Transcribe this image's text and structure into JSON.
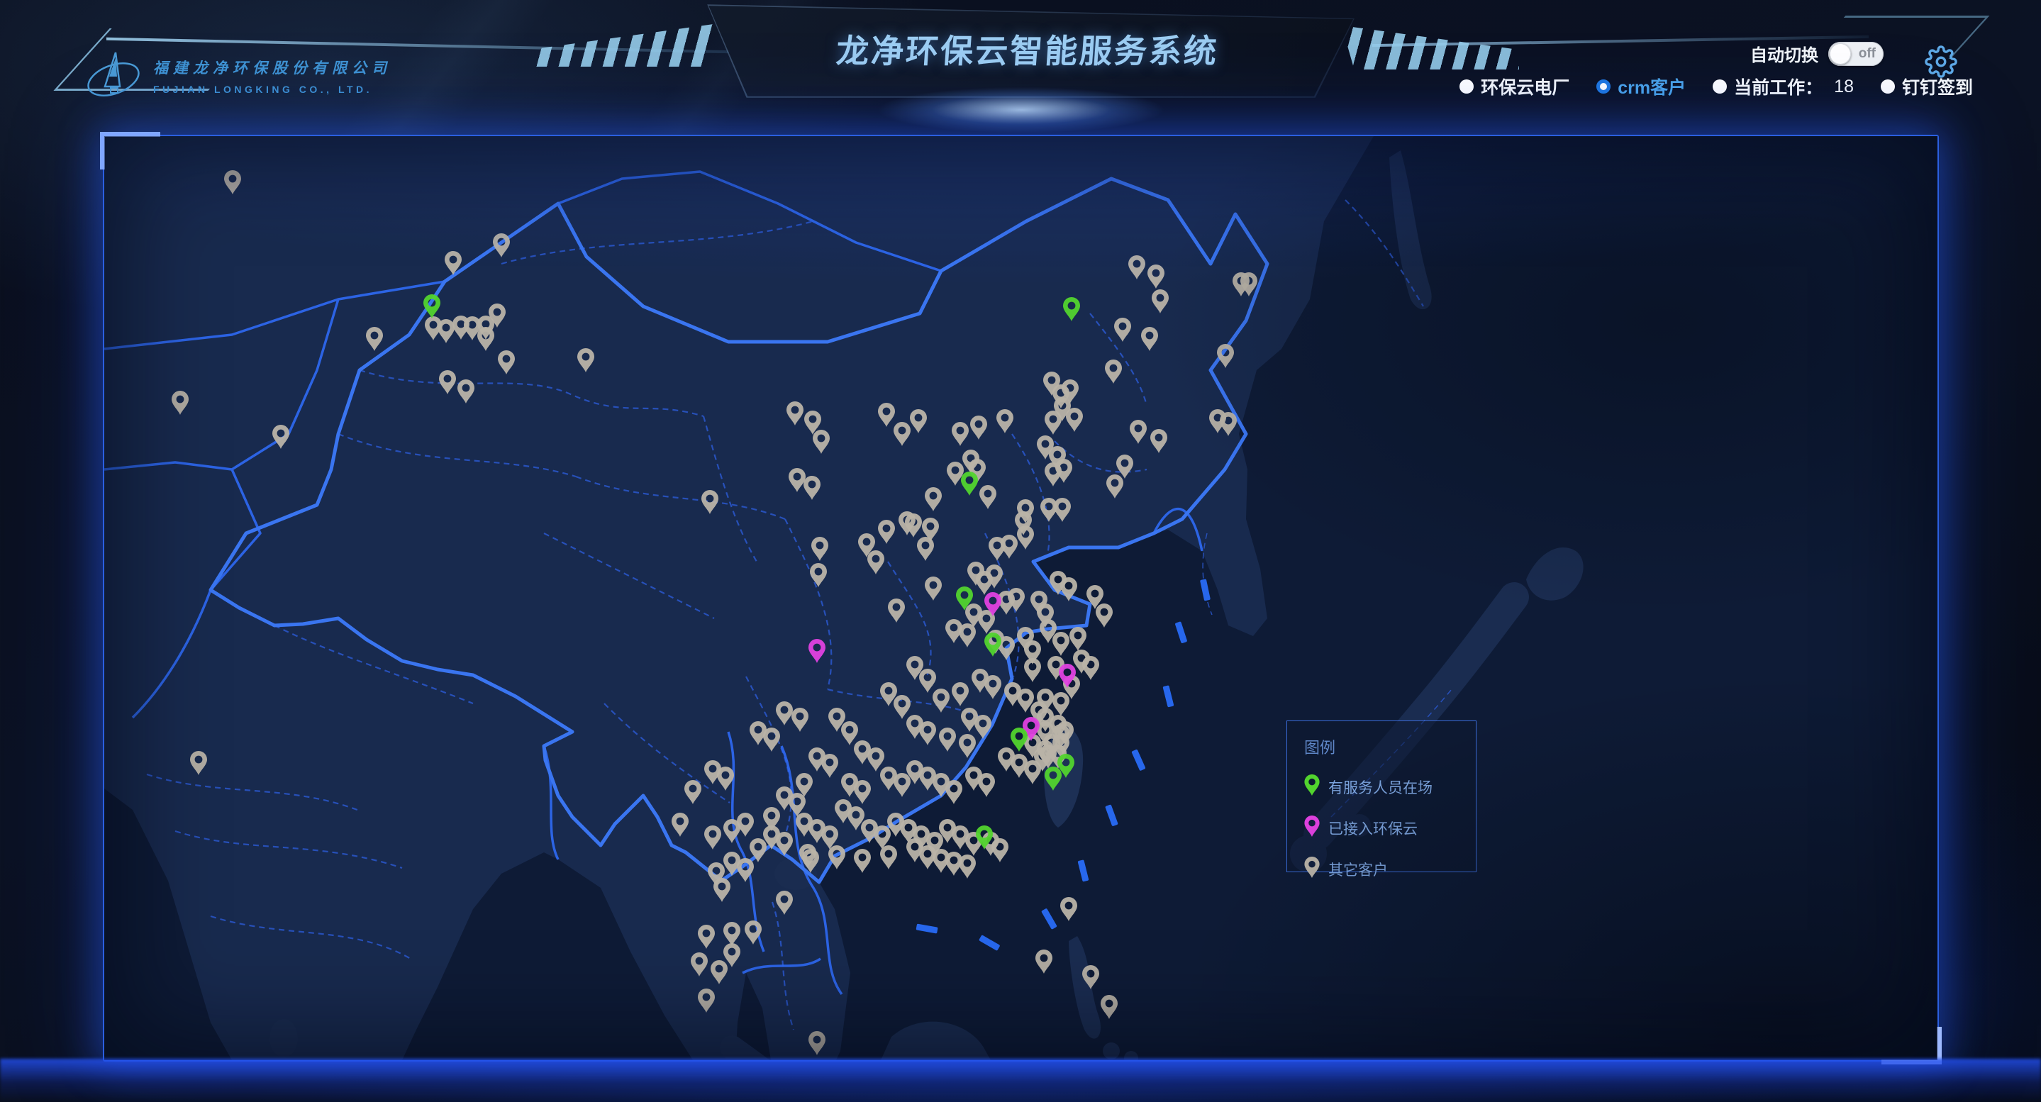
{
  "header": {
    "logo": {
      "company_cn": "福建龙净环保股份有限公司",
      "company_en": "FUJIAN LONGKING CO., LTD."
    },
    "title": "龙净环保云智能服务系统",
    "controls": {
      "auto_label": "自动切换",
      "toggle_state": "off",
      "gear_icon": "settings-gear",
      "radios": [
        {
          "label": "环保云电厂",
          "selected": false
        },
        {
          "label": "crm客户",
          "selected": true
        },
        {
          "label": "当前工作：",
          "value": "18",
          "selected": false
        },
        {
          "label": "钉钉签到",
          "selected": false
        }
      ]
    }
  },
  "legend": {
    "title": "图例",
    "items": [
      {
        "label": "有服务人员在场",
        "type": "g"
      },
      {
        "label": "已接入环保云",
        "type": "m"
      },
      {
        "label": "其它客户",
        "type": "e"
      }
    ]
  },
  "map": {
    "pin_colors": {
      "g": "#52d42e",
      "m": "#e041e0",
      "e": "#b9b3a8"
    },
    "colors": {
      "sea": "#0e1b36",
      "land": "#182a4e",
      "border_bright": "#2f6af5",
      "border_dashed": "#2a57cc",
      "china_outline": "#3a75f0",
      "frame": "#2b5fe0",
      "accent_text": "#9ccdf2",
      "nine_dash": "#2767ec"
    },
    "pins": [
      [
        181,
        82,
        "e"
      ],
      [
        492,
        196,
        "e"
      ],
      [
        560,
        171,
        "e"
      ],
      [
        464,
        288,
        "e"
      ],
      [
        482,
        292,
        "e"
      ],
      [
        503,
        287,
        "e"
      ],
      [
        519,
        288,
        "e"
      ],
      [
        538,
        287,
        "e"
      ],
      [
        554,
        270,
        "e"
      ],
      [
        538,
        303,
        "e"
      ],
      [
        381,
        303,
        "e"
      ],
      [
        567,
        336,
        "e"
      ],
      [
        679,
        333,
        "e"
      ],
      [
        484,
        364,
        "e"
      ],
      [
        510,
        377,
        "e"
      ],
      [
        107,
        393,
        "e"
      ],
      [
        249,
        441,
        "e"
      ],
      [
        854,
        533,
        "e"
      ],
      [
        974,
        408,
        "e"
      ],
      [
        999,
        421,
        "e"
      ],
      [
        1011,
        448,
        "e"
      ],
      [
        977,
        502,
        "e"
      ],
      [
        998,
        513,
        "e"
      ],
      [
        1103,
        410,
        "e"
      ],
      [
        1125,
        437,
        "e"
      ],
      [
        1148,
        419,
        "e"
      ],
      [
        1207,
        437,
        "e"
      ],
      [
        1233,
        428,
        "e"
      ],
      [
        1270,
        419,
        "e"
      ],
      [
        1200,
        493,
        "e"
      ],
      [
        1222,
        476,
        "e"
      ],
      [
        1231,
        489,
        "e"
      ],
      [
        1246,
        526,
        "e"
      ],
      [
        1169,
        529,
        "e"
      ],
      [
        1132,
        563,
        "e"
      ],
      [
        1141,
        566,
        "e"
      ],
      [
        1103,
        575,
        "e"
      ],
      [
        1165,
        572,
        "e"
      ],
      [
        1075,
        594,
        "e"
      ],
      [
        1158,
        599,
        "e"
      ],
      [
        1088,
        618,
        "e"
      ],
      [
        1009,
        599,
        "e"
      ],
      [
        1007,
        636,
        "e"
      ],
      [
        1117,
        686,
        "e"
      ],
      [
        1169,
        655,
        "e"
      ],
      [
        1327,
        456,
        "e"
      ],
      [
        1344,
        471,
        "e"
      ],
      [
        1353,
        489,
        "e"
      ],
      [
        1458,
        434,
        "e"
      ],
      [
        1487,
        447,
        "e"
      ],
      [
        1570,
        419,
        "e"
      ],
      [
        1585,
        423,
        "e"
      ],
      [
        1439,
        483,
        "e"
      ],
      [
        1425,
        511,
        "e"
      ],
      [
        1351,
        544,
        "e"
      ],
      [
        1296,
        563,
        "e"
      ],
      [
        1259,
        599,
        "e"
      ],
      [
        1276,
        596,
        "e"
      ],
      [
        1229,
        634,
        "e"
      ],
      [
        1241,
        647,
        "e"
      ],
      [
        1255,
        638,
        "e"
      ],
      [
        1272,
        675,
        "e"
      ],
      [
        1286,
        671,
        "e"
      ],
      [
        1318,
        675,
        "e"
      ],
      [
        1327,
        693,
        "e"
      ],
      [
        1345,
        647,
        "e"
      ],
      [
        1360,
        656,
        "e"
      ],
      [
        1226,
        693,
        "e"
      ],
      [
        1244,
        702,
        "e"
      ],
      [
        1198,
        715,
        "e"
      ],
      [
        1217,
        721,
        "e"
      ],
      [
        1257,
        730,
        "e"
      ],
      [
        1272,
        739,
        "e"
      ],
      [
        1299,
        726,
        "e"
      ],
      [
        1309,
        745,
        "e"
      ],
      [
        1331,
        715,
        "e"
      ],
      [
        1349,
        733,
        "e"
      ],
      [
        1373,
        726,
        "e"
      ],
      [
        1397,
        667,
        "e"
      ],
      [
        1410,
        693,
        "e"
      ],
      [
        1378,
        758,
        "e"
      ],
      [
        1391,
        767,
        "e"
      ],
      [
        1342,
        767,
        "e"
      ],
      [
        1309,
        770,
        "e"
      ],
      [
        1456,
        202,
        "e"
      ],
      [
        1483,
        215,
        "e"
      ],
      [
        1603,
        226,
        "e"
      ],
      [
        1614,
        226,
        "e"
      ],
      [
        1489,
        250,
        "e"
      ],
      [
        1436,
        290,
        "e"
      ],
      [
        1474,
        303,
        "e"
      ],
      [
        1581,
        327,
        "e"
      ],
      [
        1423,
        349,
        "e"
      ],
      [
        1336,
        366,
        "e"
      ],
      [
        1349,
        384,
        "e"
      ],
      [
        1362,
        377,
        "e"
      ],
      [
        1351,
        402,
        "e"
      ],
      [
        1368,
        417,
        "e"
      ],
      [
        1338,
        421,
        "e"
      ],
      [
        1338,
        494,
        "e"
      ],
      [
        1332,
        544,
        "e"
      ],
      [
        1299,
        546,
        "e"
      ],
      [
        1299,
        583,
        "e"
      ],
      [
        1143,
        767,
        "e"
      ],
      [
        1161,
        785,
        "e"
      ],
      [
        1106,
        804,
        "e"
      ],
      [
        1125,
        822,
        "e"
      ],
      [
        1180,
        813,
        "e"
      ],
      [
        1207,
        804,
        "e"
      ],
      [
        1235,
        785,
        "e"
      ],
      [
        1253,
        794,
        "e"
      ],
      [
        1281,
        804,
        "e"
      ],
      [
        1299,
        813,
        "e"
      ],
      [
        1327,
        813,
        "e"
      ],
      [
        1349,
        818,
        "e"
      ],
      [
        1364,
        794,
        "e"
      ],
      [
        1220,
        840,
        "e"
      ],
      [
        1239,
        850,
        "e"
      ],
      [
        1143,
        850,
        "e"
      ],
      [
        1161,
        859,
        "e"
      ],
      [
        1189,
        868,
        "e"
      ],
      [
        1217,
        877,
        "e"
      ],
      [
        959,
        831,
        "e"
      ],
      [
        981,
        840,
        "e"
      ],
      [
        922,
        859,
        "e"
      ],
      [
        941,
        868,
        "e"
      ],
      [
        1033,
        840,
        "e"
      ],
      [
        1051,
        859,
        "e"
      ],
      [
        1069,
        886,
        "e"
      ],
      [
        1088,
        896,
        "e"
      ],
      [
        1005,
        896,
        "e"
      ],
      [
        1023,
        905,
        "e"
      ],
      [
        987,
        932,
        "e"
      ],
      [
        1051,
        932,
        "e"
      ],
      [
        1069,
        942,
        "e"
      ],
      [
        1106,
        923,
        "e"
      ],
      [
        1125,
        932,
        "e"
      ],
      [
        1143,
        914,
        "e"
      ],
      [
        1161,
        923,
        "e"
      ],
      [
        1180,
        932,
        "e"
      ],
      [
        1198,
        942,
        "e"
      ],
      [
        1226,
        923,
        "e"
      ],
      [
        1244,
        932,
        "e"
      ],
      [
        1272,
        896,
        "e"
      ],
      [
        1290,
        905,
        "e"
      ],
      [
        1309,
        877,
        "e"
      ],
      [
        1327,
        886,
        "e"
      ],
      [
        1349,
        877,
        "e"
      ],
      [
        1327,
        840,
        "e"
      ],
      [
        1345,
        850,
        "e"
      ],
      [
        1318,
        831,
        "e"
      ],
      [
        1327,
        859,
        "e"
      ],
      [
        1336,
        877,
        "e"
      ],
      [
        1323,
        896,
        "e"
      ],
      [
        1309,
        914,
        "e"
      ],
      [
        1355,
        859,
        "e"
      ],
      [
        1345,
        892,
        "e"
      ],
      [
        1349,
        863,
        "e"
      ],
      [
        1331,
        892,
        "e"
      ],
      [
        987,
        988,
        "e"
      ],
      [
        1005,
        997,
        "e"
      ],
      [
        1023,
        1006,
        "e"
      ],
      [
        1042,
        969,
        "e"
      ],
      [
        1060,
        979,
        "e"
      ],
      [
        1079,
        997,
        "e"
      ],
      [
        1097,
        1006,
        "e"
      ],
      [
        1116,
        988,
        "e"
      ],
      [
        1134,
        997,
        "e"
      ],
      [
        1152,
        1006,
        "e"
      ],
      [
        1171,
        1015,
        "e"
      ],
      [
        1189,
        997,
        "e"
      ],
      [
        1207,
        1006,
        "e"
      ],
      [
        1226,
        1015,
        "e"
      ],
      [
        1250,
        1015,
        "e"
      ],
      [
        1263,
        1024,
        "e"
      ],
      [
        1143,
        1024,
        "e"
      ],
      [
        1161,
        1034,
        "e"
      ],
      [
        1180,
        1039,
        "e"
      ],
      [
        1198,
        1043,
        "e"
      ],
      [
        1217,
        1047,
        "e"
      ],
      [
        1106,
        1034,
        "e"
      ],
      [
        1069,
        1039,
        "e"
      ],
      [
        1033,
        1034,
        "e"
      ],
      [
        996,
        1039,
        "e"
      ],
      [
        959,
        1015,
        "e"
      ],
      [
        941,
        1006,
        "e"
      ],
      [
        922,
        1024,
        "e"
      ],
      [
        904,
        988,
        "e"
      ],
      [
        885,
        997,
        "e"
      ],
      [
        858,
        1006,
        "e"
      ],
      [
        959,
        951,
        "e"
      ],
      [
        977,
        960,
        "e"
      ],
      [
        858,
        914,
        "e"
      ],
      [
        876,
        923,
        "e"
      ],
      [
        830,
        942,
        "e"
      ],
      [
        812,
        988,
        "e"
      ],
      [
        885,
        1043,
        "e"
      ],
      [
        904,
        1052,
        "e"
      ],
      [
        871,
        1080,
        "e"
      ],
      [
        941,
        980,
        "e"
      ],
      [
        992,
        1032,
        "e"
      ],
      [
        863,
        1058,
        "e"
      ],
      [
        959,
        1098,
        "e"
      ],
      [
        849,
        1146,
        "e"
      ],
      [
        885,
        1142,
        "e"
      ],
      [
        915,
        1140,
        "e"
      ],
      [
        885,
        1172,
        "e"
      ],
      [
        839,
        1185,
        "e"
      ],
      [
        867,
        1196,
        "e"
      ],
      [
        849,
        1236,
        "e"
      ],
      [
        1005,
        1296,
        "e"
      ],
      [
        133,
        901,
        "e"
      ],
      [
        1360,
        1107,
        "e"
      ],
      [
        1325,
        1181,
        "e"
      ],
      [
        1391,
        1203,
        "e"
      ],
      [
        1417,
        1245,
        "e"
      ],
      [
        1253,
        677,
        "m"
      ],
      [
        1005,
        743,
        "m"
      ],
      [
        1358,
        778,
        "m"
      ],
      [
        1307,
        853,
        "m"
      ],
      [
        462,
        257,
        "g"
      ],
      [
        1220,
        507,
        "g"
      ],
      [
        1213,
        669,
        "g"
      ],
      [
        1364,
        261,
        "g"
      ],
      [
        1253,
        734,
        "g"
      ],
      [
        1290,
        868,
        "g"
      ],
      [
        1356,
        905,
        "g"
      ],
      [
        1338,
        923,
        "g"
      ],
      [
        1241,
        1006,
        "g"
      ]
    ]
  }
}
